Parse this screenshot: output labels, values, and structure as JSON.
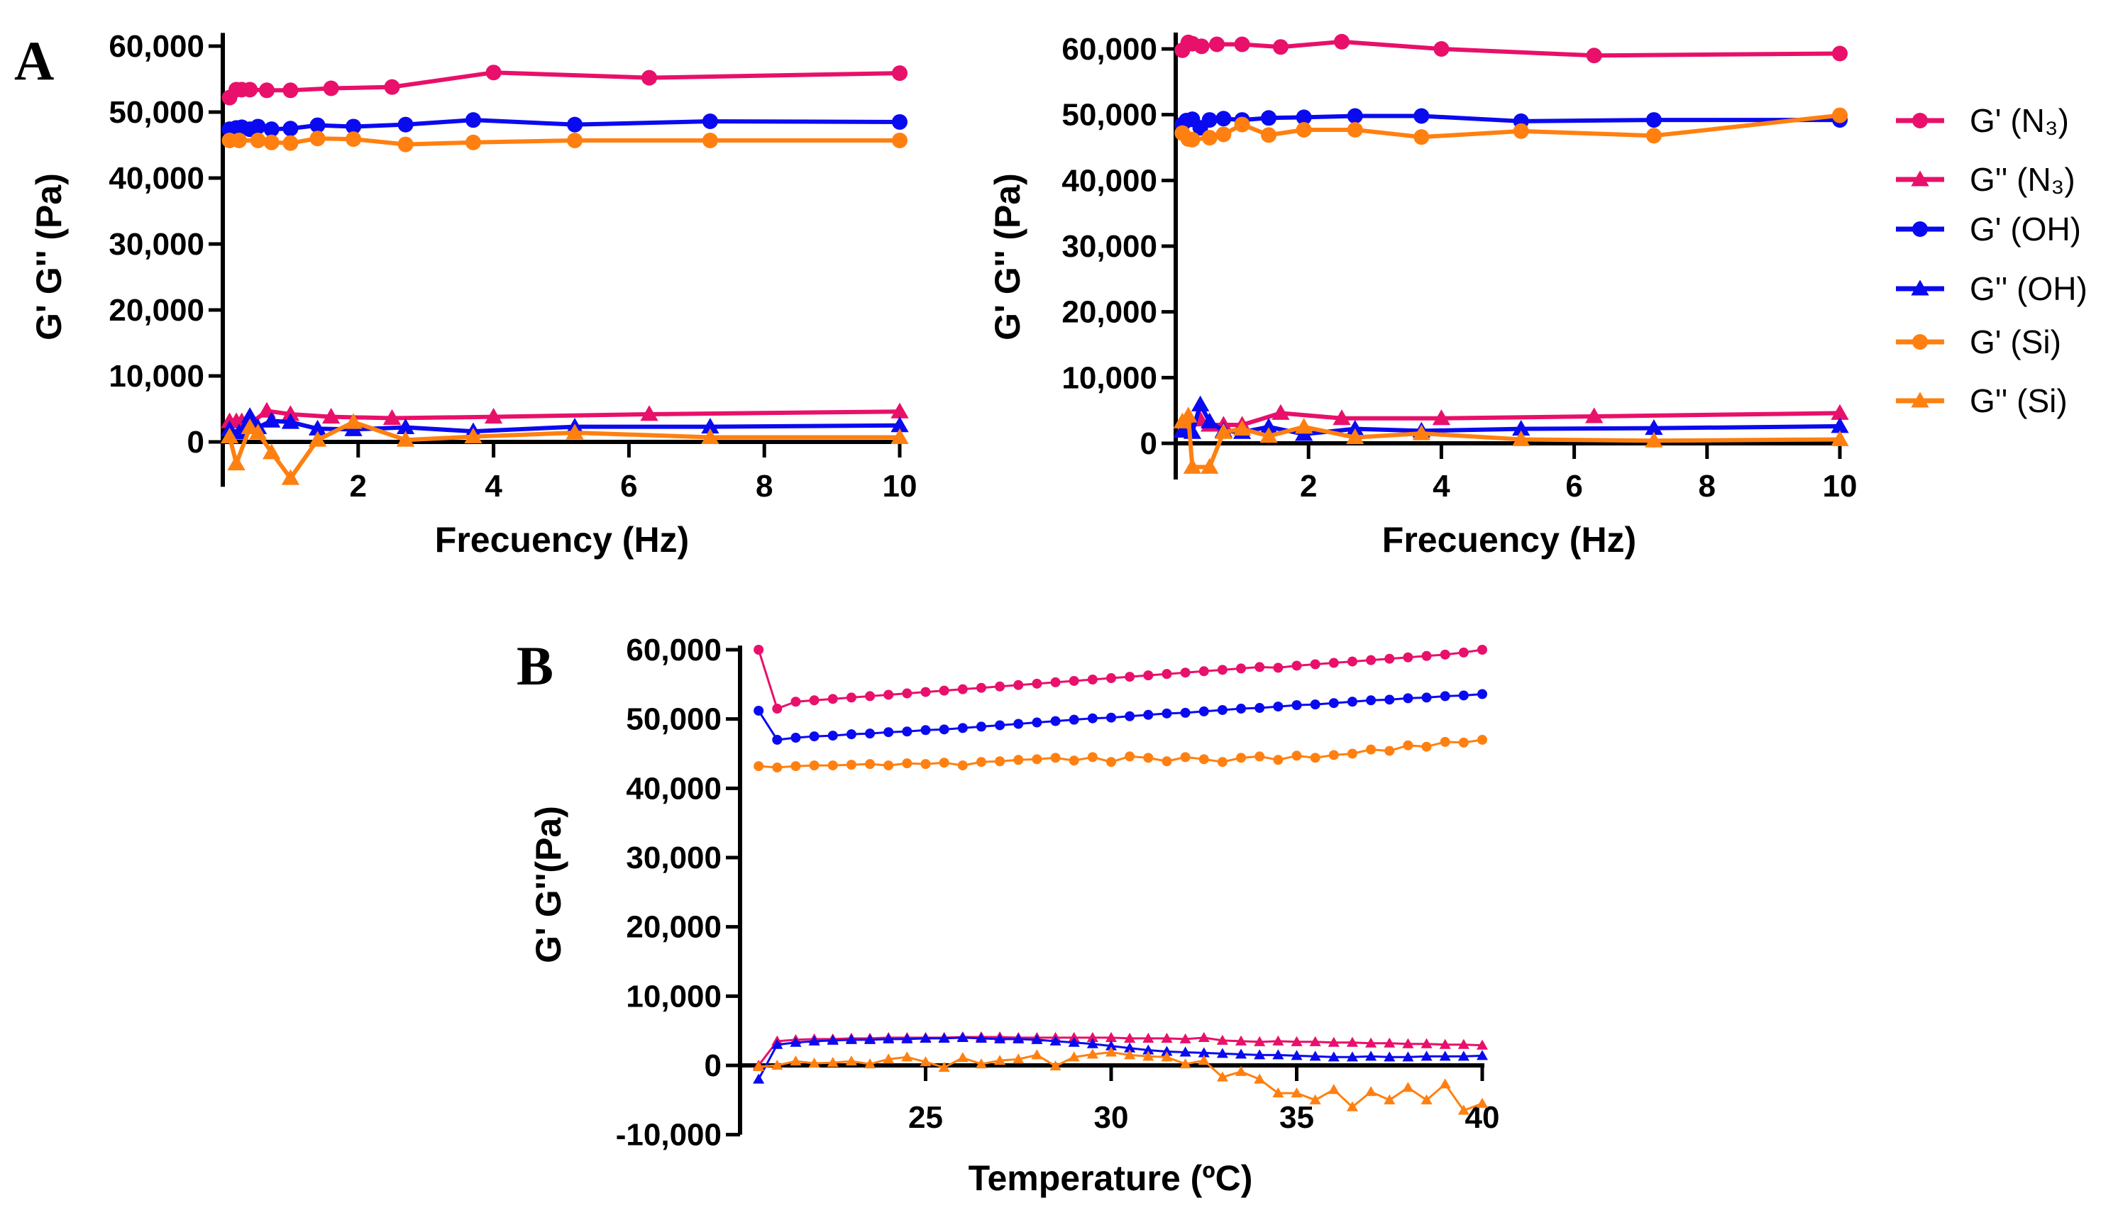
{
  "panel_labels": {
    "a": "A",
    "b": "B"
  },
  "legend": [
    {
      "key": "n3_gp",
      "label": "G' (N₃)",
      "color": "#E8106A",
      "marker": "circle"
    },
    {
      "key": "n3_gpp",
      "label": "G'' (N₃)",
      "color": "#E8106A",
      "marker": "triangle"
    },
    {
      "key": "oh_gp",
      "label": "G' (OH)",
      "color": "#0A0AF0",
      "marker": "circle"
    },
    {
      "key": "oh_gpp",
      "label": "G'' (OH)",
      "color": "#0A0AF0",
      "marker": "triangle"
    },
    {
      "key": "si_gp",
      "label": "G' (Si)",
      "color": "#FF8010",
      "marker": "circle"
    },
    {
      "key": "si_gpp",
      "label": "G'' (Si)",
      "color": "#FF8010",
      "marker": "triangle"
    }
  ],
  "chart_data": [
    {
      "id": "A1",
      "type": "line",
      "xlabel": "Frecuency (Hz)",
      "ylabel": "G' G'' (Pa)",
      "xlim": [
        0,
        10
      ],
      "ylim": [
        -6800,
        62000
      ],
      "xticks": [
        2,
        4,
        6,
        8,
        10
      ],
      "xtick_labels": [
        "2",
        "4",
        "6",
        "8",
        "10"
      ],
      "yticks": [
        0,
        10000,
        20000,
        30000,
        40000,
        50000,
        60000
      ],
      "ytick_labels": [
        "0",
        "10,000",
        "20,000",
        "30,000",
        "40,000",
        "50,000",
        "60,000"
      ],
      "series": [
        {
          "key": "n3_gp",
          "x": [
            0.1,
            0.2,
            0.28,
            0.4,
            0.65,
            1.0,
            1.6,
            2.5,
            4.0,
            6.3,
            10
          ],
          "y": [
            52200,
            53400,
            53400,
            53400,
            53300,
            53300,
            53600,
            53800,
            56000,
            55200,
            55900
          ]
        },
        {
          "key": "oh_gp",
          "x": [
            0.1,
            0.2,
            0.28,
            0.4,
            0.52,
            0.72,
            1.0,
            1.4,
            1.93,
            2.7,
            3.7,
            5.2,
            7.2,
            10
          ],
          "y": [
            47400,
            47600,
            47700,
            47400,
            47800,
            47400,
            47500,
            48000,
            47800,
            48100,
            48800,
            48100,
            48600,
            48500
          ]
        },
        {
          "key": "si_gp",
          "x": [
            0.1,
            0.24,
            0.52,
            0.72,
            1.0,
            1.4,
            1.93,
            2.7,
            3.7,
            5.2,
            7.2,
            10
          ],
          "y": [
            45700,
            45700,
            45700,
            45400,
            45300,
            46000,
            45900,
            45100,
            45400,
            45700,
            45700,
            45700
          ]
        },
        {
          "key": "n3_gpp",
          "x": [
            0.1,
            0.2,
            0.28,
            0.4,
            0.65,
            1.0,
            1.6,
            2.5,
            4.0,
            6.3,
            10
          ],
          "y": [
            3100,
            3100,
            3100,
            2700,
            4700,
            4200,
            3800,
            3600,
            3800,
            4200,
            4600
          ]
        },
        {
          "key": "oh_gpp",
          "x": [
            0.1,
            0.24,
            0.4,
            0.52,
            0.72,
            1.0,
            1.4,
            1.93,
            2.7,
            3.7,
            5.2,
            7.2,
            10
          ],
          "y": [
            1900,
            1400,
            3900,
            2200,
            3200,
            3000,
            2000,
            1900,
            2200,
            1600,
            2300,
            2300,
            2500
          ]
        },
        {
          "key": "si_gpp",
          "x": [
            0.1,
            0.2,
            0.4,
            0.52,
            0.72,
            1.0,
            1.4,
            1.93,
            2.7,
            3.7,
            5.2,
            7.2,
            10
          ],
          "y": [
            800,
            -3300,
            2200,
            1400,
            -1600,
            -5500,
            300,
            3000,
            300,
            800,
            1400,
            700,
            700
          ]
        }
      ]
    },
    {
      "id": "A2",
      "type": "line",
      "xlabel": "Frecuency (Hz)",
      "ylabel": "G' G'' (Pa)",
      "xlim": [
        0,
        10
      ],
      "ylim": [
        -5500,
        62500
      ],
      "xticks": [
        2,
        4,
        6,
        8,
        10
      ],
      "xtick_labels": [
        "2",
        "4",
        "6",
        "8",
        "10"
      ],
      "yticks": [
        0,
        10000,
        20000,
        30000,
        40000,
        50000,
        60000
      ],
      "ytick_labels": [
        "0",
        "10,000",
        "20,000",
        "30,000",
        "40,000",
        "50,000",
        "60,000"
      ],
      "series": [
        {
          "key": "n3_gp",
          "x": [
            0.1,
            0.19,
            0.25,
            0.39,
            0.62,
            1.0,
            1.58,
            2.5,
            4.0,
            6.3,
            10
          ],
          "y": [
            59800,
            61000,
            60800,
            60400,
            60700,
            60700,
            60300,
            61100,
            60000,
            59000,
            59300
          ]
        },
        {
          "key": "oh_gp",
          "x": [
            0.1,
            0.16,
            0.25,
            0.37,
            0.51,
            0.72,
            1.0,
            1.4,
            1.93,
            2.7,
            3.7,
            5.2,
            7.2,
            10
          ],
          "y": [
            48500,
            49100,
            49300,
            48000,
            49200,
            49400,
            49200,
            49500,
            49600,
            49800,
            49800,
            49000,
            49200,
            49200
          ]
        },
        {
          "key": "si_gp",
          "x": [
            0.1,
            0.19,
            0.25,
            0.51,
            0.72,
            1.0,
            1.4,
            1.93,
            2.7,
            3.7,
            5.2,
            7.2,
            10
          ],
          "y": [
            47200,
            46300,
            46200,
            46500,
            47000,
            48500,
            46900,
            47700,
            47700,
            46600,
            47500,
            46800,
            49900
          ]
        },
        {
          "key": "n3_gpp",
          "x": [
            0.1,
            0.19,
            0.37,
            0.51,
            0.72,
            1.0,
            1.58,
            2.5,
            4.0,
            6.3,
            10
          ],
          "y": [
            1900,
            2500,
            3600,
            2800,
            2800,
            2800,
            4600,
            3800,
            3800,
            4100,
            4600
          ]
        },
        {
          "key": "oh_gpp",
          "x": [
            0.1,
            0.25,
            0.37,
            0.51,
            0.72,
            1.0,
            1.4,
            1.93,
            2.7,
            3.7,
            5.2,
            7.2,
            10
          ],
          "y": [
            1900,
            1700,
            5900,
            3300,
            1900,
            1700,
            2500,
            1400,
            2200,
            1900,
            2200,
            2300,
            2600
          ]
        },
        {
          "key": "si_gpp",
          "x": [
            0.1,
            0.19,
            0.25,
            0.51,
            0.72,
            1.0,
            1.4,
            1.93,
            2.7,
            3.7,
            5.2,
            7.2,
            10
          ],
          "y": [
            3300,
            4200,
            -3600,
            -3600,
            1700,
            2200,
            1100,
            2500,
            900,
            1500,
            600,
            400,
            600
          ]
        }
      ]
    },
    {
      "id": "B",
      "type": "line",
      "xlabel": "Temperature (ºC)",
      "ylabel": "G' G''(Pa)",
      "xlim": [
        20,
        40
      ],
      "ylim": [
        -10000,
        60600
      ],
      "xticks": [
        25,
        30,
        35,
        40
      ],
      "xtick_labels": [
        "25",
        "30",
        "35",
        "40"
      ],
      "yticks": [
        -10000,
        0,
        10000,
        20000,
        30000,
        40000,
        50000,
        60000
      ],
      "ytick_labels": [
        "-10,000",
        "0",
        "10,000",
        "20,000",
        "30,000",
        "40,000",
        "50,000",
        "60,000"
      ],
      "x": [
        20.5,
        21,
        21.5,
        22,
        22.5,
        23,
        23.5,
        24,
        24.5,
        25,
        25.5,
        26,
        26.5,
        27,
        27.5,
        28,
        28.5,
        29,
        29.5,
        30,
        30.5,
        31,
        31.5,
        32,
        32.5,
        33,
        33.5,
        34,
        34.5,
        35,
        35.5,
        36,
        36.5,
        37,
        37.5,
        38,
        38.5,
        39,
        39.5,
        40
      ],
      "series": [
        {
          "key": "n3_gp",
          "y": [
            60000,
            51500,
            52500,
            52700,
            52900,
            53100,
            53300,
            53500,
            53700,
            53900,
            54100,
            54300,
            54500,
            54700,
            54900,
            55100,
            55300,
            55500,
            55700,
            55900,
            56100,
            56300,
            56500,
            56700,
            56900,
            57100,
            57300,
            57500,
            57400,
            57700,
            57900,
            58100,
            58300,
            58500,
            58700,
            58900,
            59100,
            59300,
            59600,
            60000
          ]
        },
        {
          "key": "oh_gp",
          "y": [
            51200,
            47000,
            47300,
            47500,
            47600,
            47800,
            47900,
            48100,
            48200,
            48400,
            48500,
            48700,
            48900,
            49100,
            49300,
            49500,
            49700,
            49900,
            50100,
            50200,
            50400,
            50600,
            50800,
            50900,
            51100,
            51300,
            51500,
            51600,
            51800,
            52000,
            52100,
            52300,
            52500,
            52700,
            52800,
            53000,
            53100,
            53300,
            53400,
            53600
          ]
        },
        {
          "key": "si_gp",
          "y": [
            43200,
            43000,
            43200,
            43300,
            43300,
            43400,
            43500,
            43300,
            43600,
            43500,
            43700,
            43300,
            43800,
            43900,
            44100,
            44200,
            44400,
            44000,
            44500,
            43800,
            44600,
            44400,
            43900,
            44500,
            44200,
            43800,
            44400,
            44600,
            44100,
            44700,
            44400,
            44800,
            45000,
            45600,
            45400,
            46200,
            46000,
            46700,
            46600,
            47000
          ]
        },
        {
          "key": "n3_gpp",
          "y": [
            0,
            3500,
            3700,
            3800,
            3800,
            3900,
            3900,
            4000,
            4000,
            4000,
            4000,
            4100,
            4100,
            4100,
            4000,
            4000,
            4000,
            4000,
            4000,
            4000,
            3900,
            3900,
            3900,
            3800,
            4000,
            3600,
            3500,
            3400,
            3500,
            3400,
            3400,
            3300,
            3300,
            3200,
            3200,
            3100,
            3100,
            3000,
            3000,
            2900
          ]
        },
        {
          "key": "oh_gpp",
          "y": [
            -2000,
            3000,
            3300,
            3500,
            3600,
            3700,
            3700,
            3800,
            3800,
            3900,
            3900,
            4000,
            3900,
            3800,
            3800,
            3700,
            3500,
            3300,
            3100,
            2800,
            2500,
            2200,
            2000,
            1900,
            1800,
            1700,
            1600,
            1500,
            1500,
            1400,
            1300,
            1200,
            1200,
            1300,
            1200,
            1200,
            1300,
            1300,
            1300,
            1400
          ]
        },
        {
          "key": "si_gpp",
          "y": [
            -200,
            0,
            600,
            300,
            400,
            600,
            200,
            900,
            1200,
            500,
            -300,
            1100,
            200,
            700,
            900,
            1500,
            -100,
            1200,
            1600,
            1900,
            1500,
            1300,
            1200,
            200,
            700,
            -1700,
            -900,
            -2000,
            -4000,
            -4000,
            -5000,
            -3500,
            -6000,
            -3800,
            -5000,
            -3200,
            -5000,
            -2700,
            -6500,
            -5500
          ]
        }
      ]
    }
  ]
}
